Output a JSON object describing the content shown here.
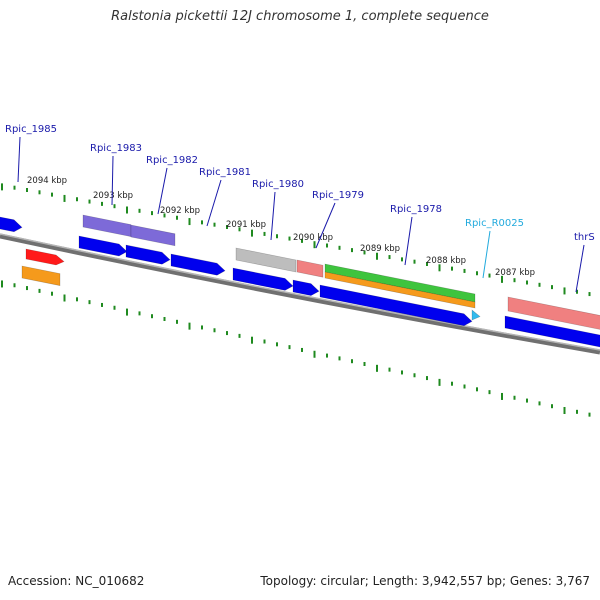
{
  "title": "Ralstonia pickettii 12J chromosome 1, complete sequence",
  "accession_text": "Accession: NC_010682",
  "summary_text": "Topology: circular; Length: 3,942,557 bp; Genes: 3,767",
  "colors": {
    "blue": "#0000ee",
    "purple": "#7d6ad8",
    "gray": "#bdbdbd",
    "pink": "#f08080",
    "green": "#3ec43e",
    "orange": "#f59a1c",
    "red": "#ff1a1a",
    "cyan": "#33bbee",
    "tick": "#1f8a1f",
    "label_blue": "#1a1aaa",
    "label_cyan": "#22aadd"
  },
  "scale_labels": [
    {
      "text": "2094 kbp"
    },
    {
      "text": "2093 kbp"
    },
    {
      "text": "2092 kbp"
    },
    {
      "text": "2091 kbp"
    },
    {
      "text": "2090 kbp"
    },
    {
      "text": "2089 kbp"
    },
    {
      "text": "2088 kbp"
    },
    {
      "text": "2087 kbp"
    }
  ],
  "gene_labels": [
    {
      "text": "Rpic_1985",
      "color": "label_blue"
    },
    {
      "text": "Rpic_1983",
      "color": "label_blue"
    },
    {
      "text": "Rpic_1982",
      "color": "label_blue"
    },
    {
      "text": "Rpic_1981",
      "color": "label_blue"
    },
    {
      "text": "Rpic_1980",
      "color": "label_blue"
    },
    {
      "text": "Rpic_1979",
      "color": "label_blue"
    },
    {
      "text": "Rpic_1978",
      "color": "label_blue"
    },
    {
      "text": "Rpic_R0025",
      "color": "label_cyan"
    },
    {
      "text": "thrS",
      "color": "label_blue"
    }
  ],
  "features": [
    {
      "name": "cds-left-edge",
      "color": "blue",
      "arrow": true
    },
    {
      "name": "cds-1983",
      "color": "blue",
      "arrow": true
    },
    {
      "name": "cds-1982",
      "color": "blue",
      "arrow": true
    },
    {
      "name": "cds-1981",
      "color": "blue",
      "arrow": true
    },
    {
      "name": "cds-1980",
      "color": "blue",
      "arrow": true
    },
    {
      "name": "cds-1979",
      "color": "blue",
      "arrow": true
    },
    {
      "name": "cds-1978",
      "color": "blue",
      "arrow": true
    },
    {
      "name": "cds-thrS",
      "color": "blue",
      "arrow": true
    },
    {
      "name": "rrna-R0025",
      "color": "cyan",
      "arrow": true
    },
    {
      "name": "gene-1983",
      "color": "purple",
      "arrow": false
    },
    {
      "name": "gene-1982",
      "color": "purple",
      "arrow": false
    },
    {
      "name": "gene-1980",
      "color": "gray",
      "arrow": false
    },
    {
      "name": "gene-1979",
      "color": "pink",
      "arrow": false
    },
    {
      "name": "gene-1978-green",
      "color": "green",
      "arrow": false
    },
    {
      "name": "gene-1978-orange",
      "color": "orange",
      "arrow": false
    },
    {
      "name": "gene-thrS",
      "color": "pink",
      "arrow": false
    },
    {
      "name": "gene-1985-red",
      "color": "red",
      "arrow": true
    },
    {
      "name": "gene-1985-orange",
      "color": "orange",
      "arrow": false
    }
  ]
}
